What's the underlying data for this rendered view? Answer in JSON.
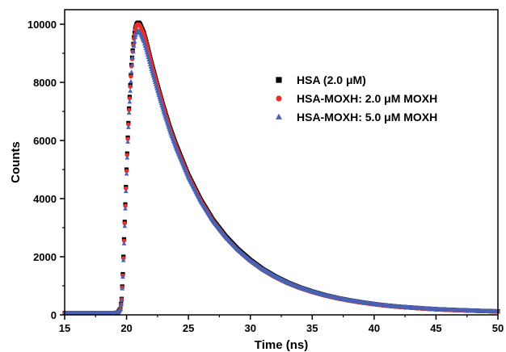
{
  "chart_data": {
    "type": "scatter",
    "title": "",
    "xlabel": "Time (ns)",
    "ylabel": "Counts",
    "xlim": [
      15,
      50
    ],
    "ylim": [
      0,
      10500
    ],
    "x_ticks": [
      "15",
      "20",
      "25",
      "30",
      "35",
      "40",
      "45",
      "50"
    ],
    "y_ticks": [
      "0",
      "2000",
      "4000",
      "6000",
      "8000",
      "10000"
    ],
    "legend_placement": "upper-right",
    "grid": false,
    "series": [
      {
        "name": "HSA (2.0 μM)",
        "marker": "square",
        "color": "#000000",
        "points": [
          [
            15,
            60
          ],
          [
            16,
            60
          ],
          [
            17,
            60
          ],
          [
            18,
            60
          ],
          [
            19,
            60
          ],
          [
            19.3,
            80
          ],
          [
            19.5,
            200
          ],
          [
            19.6,
            550
          ],
          [
            19.7,
            1400
          ],
          [
            19.8,
            2600
          ],
          [
            19.9,
            3800
          ],
          [
            20.0,
            5000
          ],
          [
            20.1,
            6100
          ],
          [
            20.2,
            7100
          ],
          [
            20.3,
            7900
          ],
          [
            20.4,
            8600
          ],
          [
            20.5,
            9100
          ],
          [
            20.6,
            9550
          ],
          [
            20.7,
            9850
          ],
          [
            20.8,
            10000
          ],
          [
            20.9,
            10050
          ],
          [
            21.0,
            10050
          ],
          [
            21.1,
            10000
          ],
          [
            21.2,
            9900
          ],
          [
            21.4,
            9700
          ],
          [
            21.6,
            9400
          ],
          [
            21.8,
            9050
          ],
          [
            22.0,
            8700
          ],
          [
            22.5,
            7900
          ],
          [
            23.0,
            7150
          ],
          [
            23.5,
            6450
          ],
          [
            24.0,
            5850
          ],
          [
            25.0,
            4800
          ],
          [
            26.0,
            3950
          ],
          [
            27.0,
            3250
          ],
          [
            28.0,
            2700
          ],
          [
            29.0,
            2250
          ],
          [
            30.0,
            1880
          ],
          [
            31.0,
            1570
          ],
          [
            32.0,
            1320
          ],
          [
            33.0,
            1110
          ],
          [
            34.0,
            940
          ],
          [
            35.0,
            800
          ],
          [
            36.0,
            680
          ],
          [
            37.0,
            580
          ],
          [
            38.0,
            500
          ],
          [
            39.0,
            430
          ],
          [
            40.0,
            370
          ],
          [
            41.0,
            320
          ],
          [
            42.0,
            280
          ],
          [
            43.0,
            250
          ],
          [
            44.0,
            220
          ],
          [
            45.0,
            195
          ],
          [
            46.0,
            175
          ],
          [
            47.0,
            160
          ],
          [
            48.0,
            145
          ],
          [
            49.0,
            130
          ],
          [
            50.0,
            120
          ]
        ]
      },
      {
        "name": "HSA-MOXH: 2.0 μM MOXH",
        "marker": "circle",
        "color": "#e8302a",
        "points": [
          [
            15,
            60
          ],
          [
            16,
            60
          ],
          [
            17,
            60
          ],
          [
            18,
            60
          ],
          [
            19,
            60
          ],
          [
            19.3,
            80
          ],
          [
            19.5,
            190
          ],
          [
            19.6,
            530
          ],
          [
            19.7,
            1350
          ],
          [
            19.8,
            2550
          ],
          [
            19.9,
            3750
          ],
          [
            20.0,
            4950
          ],
          [
            20.1,
            6050
          ],
          [
            20.2,
            7050
          ],
          [
            20.3,
            7850
          ],
          [
            20.4,
            8550
          ],
          [
            20.5,
            9050
          ],
          [
            20.6,
            9500
          ],
          [
            20.7,
            9800
          ],
          [
            20.8,
            9950
          ],
          [
            20.9,
            10000
          ],
          [
            21.0,
            9990
          ],
          [
            21.1,
            9940
          ],
          [
            21.2,
            9850
          ],
          [
            21.4,
            9650
          ],
          [
            21.6,
            9350
          ],
          [
            21.8,
            9000
          ],
          [
            22.0,
            8650
          ],
          [
            22.5,
            7850
          ],
          [
            23.0,
            7100
          ],
          [
            23.5,
            6400
          ],
          [
            24.0,
            5800
          ],
          [
            25.0,
            4760
          ],
          [
            26.0,
            3920
          ],
          [
            27.0,
            3220
          ],
          [
            28.0,
            2670
          ],
          [
            29.0,
            2220
          ],
          [
            30.0,
            1850
          ],
          [
            31.0,
            1550
          ],
          [
            32.0,
            1300
          ],
          [
            33.0,
            1100
          ],
          [
            34.0,
            930
          ],
          [
            35.0,
            790
          ],
          [
            36.0,
            670
          ],
          [
            37.0,
            570
          ],
          [
            38.0,
            490
          ],
          [
            39.0,
            420
          ],
          [
            40.0,
            365
          ],
          [
            41.0,
            315
          ],
          [
            42.0,
            275
          ],
          [
            43.0,
            245
          ],
          [
            44.0,
            215
          ],
          [
            45.0,
            190
          ],
          [
            46.0,
            170
          ],
          [
            47.0,
            155
          ],
          [
            48.0,
            140
          ],
          [
            49.0,
            128
          ],
          [
            50.0,
            118
          ]
        ]
      },
      {
        "name": "HSA-MOXH: 5.0 μM MOXH",
        "marker": "triangle",
        "color": "#4a62b4",
        "points": [
          [
            15,
            60
          ],
          [
            16,
            60
          ],
          [
            17,
            60
          ],
          [
            18,
            60
          ],
          [
            19,
            60
          ],
          [
            19.3,
            80
          ],
          [
            19.5,
            180
          ],
          [
            19.6,
            500
          ],
          [
            19.7,
            1300
          ],
          [
            19.8,
            2450
          ],
          [
            19.9,
            3650
          ],
          [
            20.0,
            4850
          ],
          [
            20.1,
            5950
          ],
          [
            20.2,
            6950
          ],
          [
            20.3,
            7700
          ],
          [
            20.4,
            8350
          ],
          [
            20.5,
            8850
          ],
          [
            20.6,
            9250
          ],
          [
            20.7,
            9550
          ],
          [
            20.8,
            9700
          ],
          [
            20.9,
            9760
          ],
          [
            21.0,
            9760
          ],
          [
            21.1,
            9700
          ],
          [
            21.2,
            9600
          ],
          [
            21.4,
            9400
          ],
          [
            21.6,
            9100
          ],
          [
            21.8,
            8780
          ],
          [
            22.0,
            8450
          ],
          [
            22.5,
            7700
          ],
          [
            23.0,
            6980
          ],
          [
            23.5,
            6320
          ],
          [
            24.0,
            5740
          ],
          [
            25.0,
            4720
          ],
          [
            26.0,
            3900
          ],
          [
            27.0,
            3220
          ],
          [
            28.0,
            2680
          ],
          [
            29.0,
            2240
          ],
          [
            30.0,
            1870
          ],
          [
            31.0,
            1570
          ],
          [
            32.0,
            1320
          ],
          [
            33.0,
            1110
          ],
          [
            34.0,
            940
          ],
          [
            35.0,
            800
          ],
          [
            36.0,
            680
          ],
          [
            37.0,
            580
          ],
          [
            38.0,
            500
          ],
          [
            39.0,
            430
          ],
          [
            40.0,
            370
          ],
          [
            41.0,
            320
          ],
          [
            42.0,
            280
          ],
          [
            43.0,
            250
          ],
          [
            44.0,
            220
          ],
          [
            45.0,
            195
          ],
          [
            46.0,
            175
          ],
          [
            47.0,
            160
          ],
          [
            48.0,
            145
          ],
          [
            49.0,
            130
          ],
          [
            50.0,
            120
          ]
        ]
      }
    ]
  }
}
